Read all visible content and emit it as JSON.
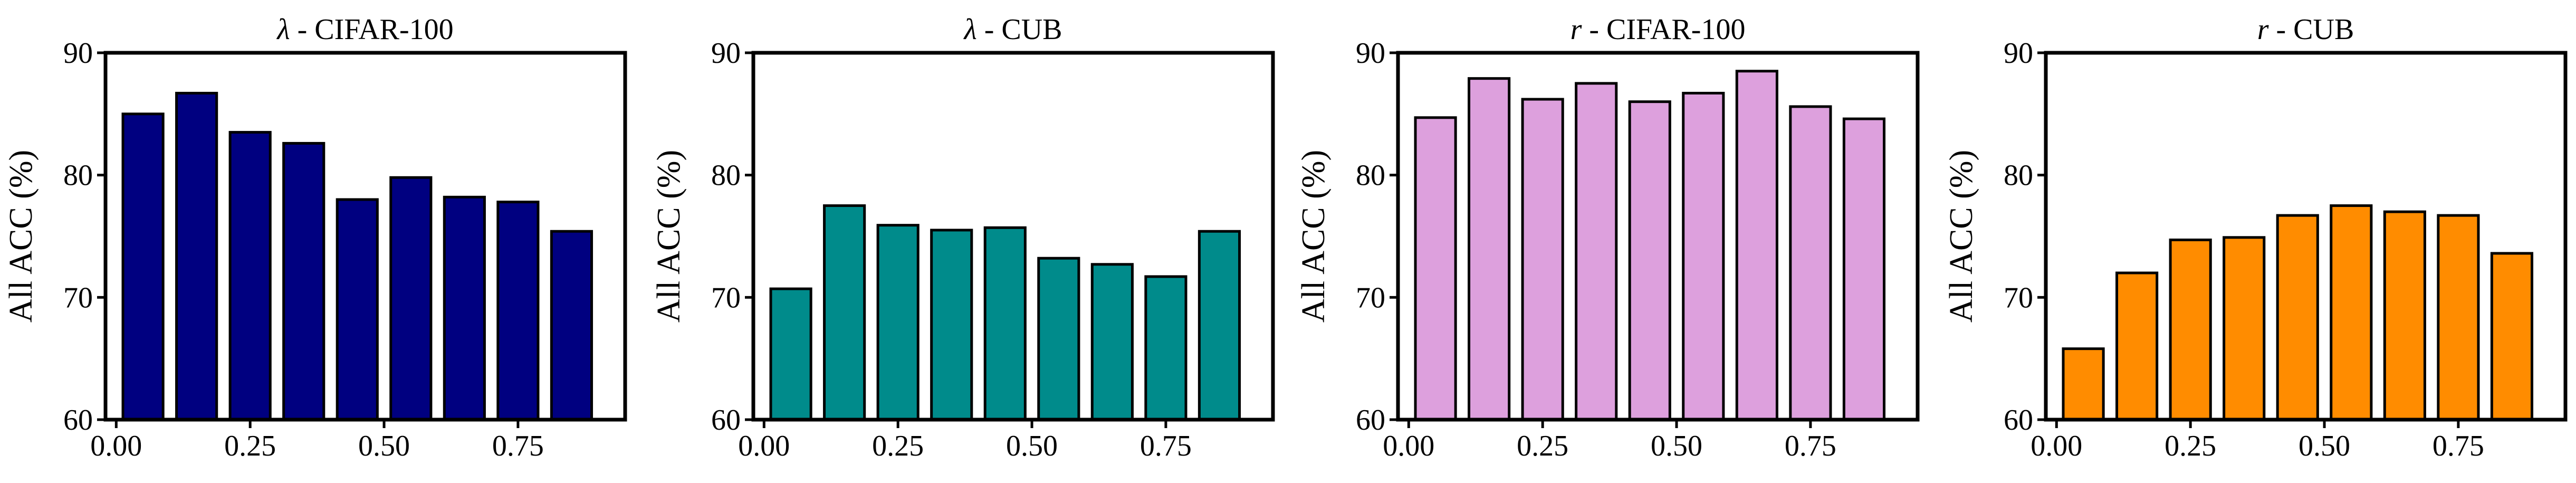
{
  "chart_data": [
    {
      "type": "bar",
      "title_symbol": "λ",
      "title_rest": " - CIFAR-100",
      "ylabel": "All ACC (%)",
      "xlabel": "",
      "x": [
        0.05,
        0.15,
        0.25,
        0.35,
        0.45,
        0.55,
        0.65,
        0.75,
        0.85
      ],
      "values": [
        85.0,
        86.7,
        83.5,
        82.6,
        78.0,
        79.8,
        78.2,
        77.8,
        75.4
      ],
      "color": "#000080",
      "xlim": [
        -0.02,
        0.95
      ],
      "ylim": [
        60,
        90
      ],
      "xticks": [
        "0.00",
        "0.25",
        "0.50",
        "0.75"
      ],
      "yticks": [
        "60",
        "70",
        "80",
        "90"
      ],
      "grid": false
    },
    {
      "type": "bar",
      "title_symbol": "λ",
      "title_rest": " - CUB",
      "ylabel": "All ACC (%)",
      "xlabel": "",
      "x": [
        0.05,
        0.15,
        0.25,
        0.35,
        0.45,
        0.55,
        0.65,
        0.75,
        0.85
      ],
      "values": [
        70.7,
        77.5,
        75.9,
        75.5,
        75.7,
        73.2,
        72.7,
        71.7,
        75.4
      ],
      "color": "#008B8B",
      "xlim": [
        -0.02,
        0.95
      ],
      "ylim": [
        60,
        90
      ],
      "xticks": [
        "0.00",
        "0.25",
        "0.50",
        "0.75"
      ],
      "yticks": [
        "60",
        "70",
        "80",
        "90"
      ],
      "grid": false
    },
    {
      "type": "bar",
      "title_symbol": "r",
      "title_rest": " - CIFAR-100",
      "ylabel": "All ACC (%)",
      "xlabel": "",
      "x": [
        0.05,
        0.15,
        0.25,
        0.35,
        0.45,
        0.55,
        0.65,
        0.75,
        0.85
      ],
      "values": [
        84.7,
        87.9,
        86.2,
        87.5,
        86.0,
        86.7,
        88.5,
        85.6,
        84.6
      ],
      "color": "#DDA0DD",
      "xlim": [
        -0.02,
        0.95
      ],
      "ylim": [
        60,
        90
      ],
      "xticks": [
        "0.00",
        "0.25",
        "0.50",
        "0.75"
      ],
      "yticks": [
        "60",
        "70",
        "80",
        "90"
      ],
      "grid": false
    },
    {
      "type": "bar",
      "title_symbol": "r",
      "title_rest": " - CUB",
      "ylabel": "All ACC (%)",
      "xlabel": "",
      "x": [
        0.05,
        0.15,
        0.25,
        0.35,
        0.45,
        0.55,
        0.65,
        0.75,
        0.85
      ],
      "values": [
        65.8,
        72.0,
        74.7,
        74.9,
        76.7,
        77.5,
        77.0,
        76.7,
        73.6
      ],
      "color": "#FF8C00",
      "xlim": [
        -0.02,
        0.95
      ],
      "ylim": [
        60,
        90
      ],
      "xticks": [
        "0.00",
        "0.25",
        "0.50",
        "0.75"
      ],
      "yticks": [
        "60",
        "70",
        "80",
        "90"
      ],
      "grid": false
    }
  ]
}
